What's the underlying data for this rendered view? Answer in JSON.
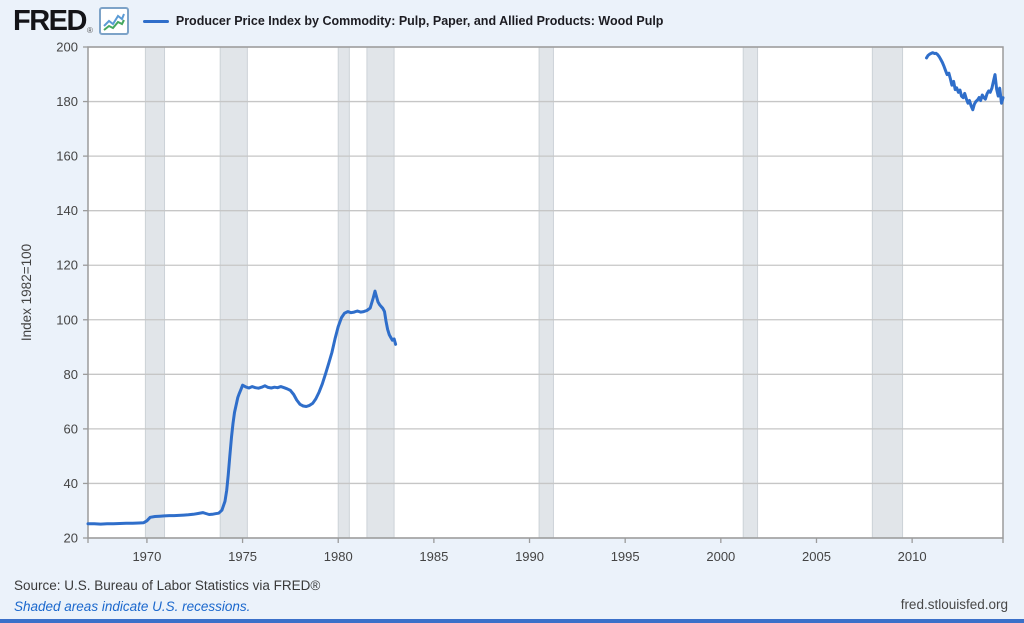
{
  "header": {
    "logo": "FRED",
    "logo_registered": "®",
    "series_label": "Producer Price Index by Commodity: Pulp, Paper, and Allied Products: Wood Pulp"
  },
  "footer": {
    "source": "Source: U.S. Bureau of Labor Statistics via FRED®",
    "recessions_note": "Shaded areas indicate U.S. recessions.",
    "site": "fred.stlouisfed.org",
    "accent_color": "#3a70c9"
  },
  "chart_data": {
    "type": "line",
    "title": "Producer Price Index by Commodity: Pulp, Paper, and Allied Products: Wood Pulp",
    "xlabel": "",
    "ylabel": "Index 1982=100",
    "xlim": [
      1966.92,
      2014.75
    ],
    "ylim": [
      20,
      200
    ],
    "xticks": [
      1970,
      1975,
      1980,
      1985,
      1990,
      1995,
      2000,
      2005,
      2010
    ],
    "yticks": [
      20,
      40,
      60,
      80,
      100,
      120,
      140,
      160,
      180,
      200
    ],
    "grid": "horizontal",
    "legend_position": "top-left",
    "line_color": "#2f6eca",
    "recession_band_color": "#e1e5e9",
    "recession_band_edge_color": "#ccd2d7",
    "recessions": [
      [
        1969.92,
        1970.92
      ],
      [
        1973.83,
        1975.25
      ],
      [
        1980.0,
        1980.58
      ],
      [
        1981.5,
        1982.92
      ],
      [
        1990.5,
        1991.25
      ],
      [
        2001.17,
        2001.92
      ],
      [
        2007.92,
        2009.5
      ]
    ],
    "series": [
      {
        "name": "Producer Price Index by Commodity: Pulp, Paper, and Allied Products: Wood Pulp",
        "segments": [
          [
            [
              1966.92,
              25.2
            ],
            [
              1967.25,
              25.2
            ],
            [
              1967.58,
              25.1
            ],
            [
              1967.92,
              25.2
            ],
            [
              1968.25,
              25.2
            ],
            [
              1968.58,
              25.3
            ],
            [
              1968.92,
              25.4
            ],
            [
              1969.25,
              25.4
            ],
            [
              1969.58,
              25.5
            ],
            [
              1969.83,
              25.6
            ],
            [
              1970.0,
              26.3
            ],
            [
              1970.17,
              27.6
            ],
            [
              1970.42,
              27.9
            ],
            [
              1970.67,
              28.0
            ],
            [
              1970.92,
              28.1
            ],
            [
              1971.17,
              28.2
            ],
            [
              1971.42,
              28.2
            ],
            [
              1971.67,
              28.3
            ],
            [
              1971.92,
              28.4
            ],
            [
              1972.17,
              28.5
            ],
            [
              1972.42,
              28.7
            ],
            [
              1972.67,
              29.0
            ],
            [
              1972.92,
              29.3
            ],
            [
              1973.08,
              29.0
            ],
            [
              1973.25,
              28.6
            ],
            [
              1973.42,
              28.7
            ],
            [
              1973.58,
              28.9
            ],
            [
              1973.75,
              29.1
            ],
            [
              1973.92,
              30.2
            ],
            [
              1974.08,
              33.5
            ],
            [
              1974.17,
              37.5
            ],
            [
              1974.25,
              43.0
            ],
            [
              1974.33,
              50.0
            ],
            [
              1974.42,
              57.0
            ],
            [
              1974.5,
              62.0
            ],
            [
              1974.58,
              66.0
            ],
            [
              1974.67,
              69.0
            ],
            [
              1974.75,
              71.5
            ],
            [
              1974.83,
              73.0
            ],
            [
              1974.92,
              74.5
            ],
            [
              1975.0,
              76.0
            ],
            [
              1975.17,
              75.4
            ],
            [
              1975.33,
              75.0
            ],
            [
              1975.5,
              75.5
            ],
            [
              1975.67,
              75.1
            ],
            [
              1975.83,
              74.9
            ],
            [
              1976.0,
              75.3
            ],
            [
              1976.17,
              75.8
            ],
            [
              1976.33,
              75.2
            ],
            [
              1976.5,
              75.0
            ],
            [
              1976.67,
              75.3
            ],
            [
              1976.83,
              75.1
            ],
            [
              1977.0,
              75.5
            ],
            [
              1977.17,
              75.1
            ],
            [
              1977.33,
              74.7
            ],
            [
              1977.5,
              74.1
            ],
            [
              1977.67,
              72.6
            ],
            [
              1977.83,
              70.6
            ],
            [
              1978.0,
              69.0
            ],
            [
              1978.17,
              68.4
            ],
            [
              1978.33,
              68.2
            ],
            [
              1978.5,
              68.6
            ],
            [
              1978.67,
              69.4
            ],
            [
              1978.83,
              71.0
            ],
            [
              1979.0,
              73.5
            ],
            [
              1979.17,
              76.5
            ],
            [
              1979.33,
              80.0
            ],
            [
              1979.5,
              84.0
            ],
            [
              1979.67,
              88.0
            ],
            [
              1979.83,
              93.0
            ],
            [
              1980.0,
              97.5
            ],
            [
              1980.17,
              100.8
            ],
            [
              1980.33,
              102.4
            ],
            [
              1980.5,
              103.0
            ],
            [
              1980.67,
              102.6
            ],
            [
              1980.83,
              102.8
            ],
            [
              1981.0,
              103.2
            ],
            [
              1981.17,
              102.8
            ],
            [
              1981.33,
              103.0
            ],
            [
              1981.5,
              103.4
            ],
            [
              1981.67,
              104.3
            ],
            [
              1981.83,
              108.0
            ],
            [
              1981.92,
              110.5
            ],
            [
              1982.0,
              108.5
            ],
            [
              1982.08,
              106.5
            ],
            [
              1982.17,
              105.5
            ],
            [
              1982.25,
              104.8
            ],
            [
              1982.33,
              104.2
            ],
            [
              1982.42,
              103.0
            ],
            [
              1982.5,
              99.5
            ],
            [
              1982.58,
              96.5
            ],
            [
              1982.67,
              94.5
            ],
            [
              1982.75,
              93.5
            ],
            [
              1982.83,
              92.5
            ],
            [
              1982.92,
              93.0
            ],
            [
              1983.0,
              91.0
            ]
          ],
          [
            [
              2010.75,
              196.0
            ],
            [
              2010.83,
              196.9
            ],
            [
              2010.92,
              197.4
            ],
            [
              2011.0,
              197.7
            ],
            [
              2011.08,
              197.9
            ],
            [
              2011.17,
              197.6
            ],
            [
              2011.25,
              197.7
            ],
            [
              2011.33,
              197.2
            ],
            [
              2011.42,
              196.4
            ],
            [
              2011.5,
              195.4
            ],
            [
              2011.58,
              194.3
            ],
            [
              2011.67,
              192.8
            ],
            [
              2011.75,
              191.3
            ],
            [
              2011.83,
              189.9
            ],
            [
              2011.92,
              190.4
            ],
            [
              2012.0,
              188.3
            ],
            [
              2012.08,
              186.0
            ],
            [
              2012.17,
              187.4
            ],
            [
              2012.25,
              184.4
            ],
            [
              2012.33,
              185.0
            ],
            [
              2012.42,
              183.4
            ],
            [
              2012.5,
              184.2
            ],
            [
              2012.58,
              182.0
            ],
            [
              2012.67,
              181.4
            ],
            [
              2012.75,
              183.0
            ],
            [
              2012.83,
              181.0
            ],
            [
              2012.92,
              179.4
            ],
            [
              2013.0,
              180.4
            ],
            [
              2013.08,
              178.4
            ],
            [
              2013.17,
              177.0
            ],
            [
              2013.25,
              179.0
            ],
            [
              2013.33,
              180.0
            ],
            [
              2013.42,
              180.6
            ],
            [
              2013.5,
              181.5
            ],
            [
              2013.58,
              180.4
            ],
            [
              2013.67,
              182.4
            ],
            [
              2013.75,
              181.4
            ],
            [
              2013.83,
              180.9
            ],
            [
              2013.92,
              182.9
            ],
            [
              2014.0,
              183.9
            ],
            [
              2014.08,
              183.4
            ],
            [
              2014.17,
              184.9
            ],
            [
              2014.25,
              187.4
            ],
            [
              2014.33,
              189.9
            ],
            [
              2014.42,
              184.4
            ],
            [
              2014.5,
              182.0
            ],
            [
              2014.58,
              184.9
            ],
            [
              2014.67,
              179.4
            ],
            [
              2014.75,
              181.4
            ]
          ]
        ]
      }
    ]
  }
}
